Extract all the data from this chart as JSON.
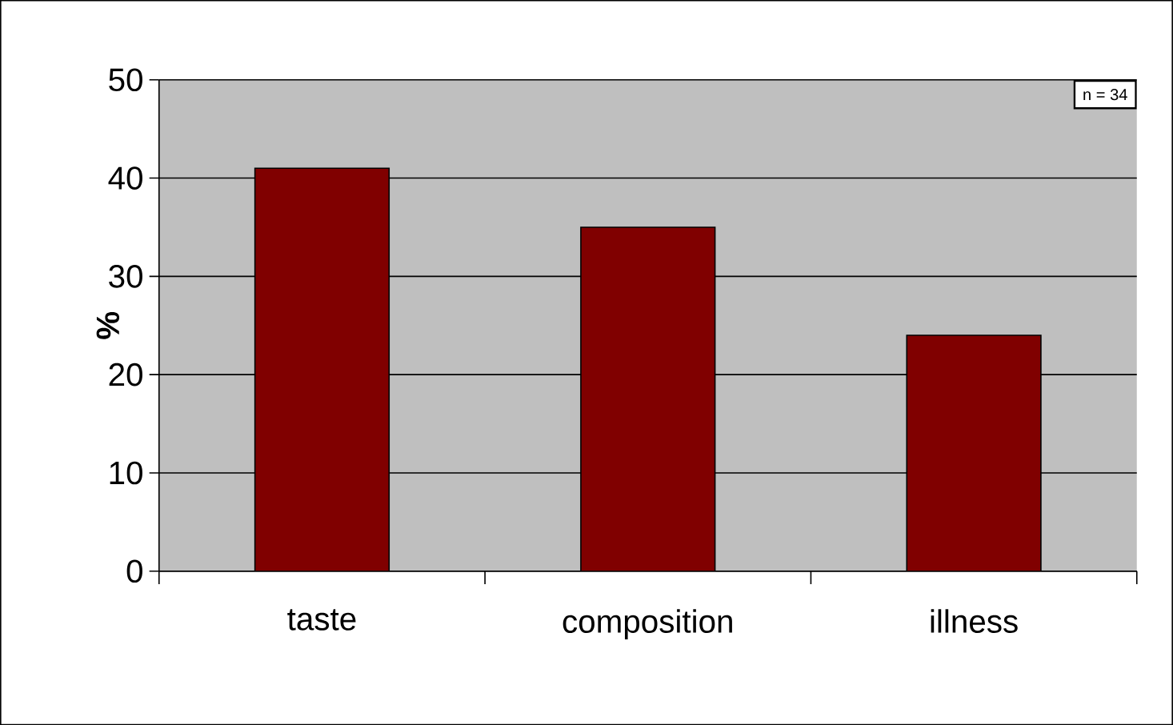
{
  "chart_data": {
    "type": "bar",
    "ylabel": "%",
    "categories": [
      "taste",
      "composition",
      "illness"
    ],
    "values": [
      41,
      35,
      24
    ],
    "color": "#800000",
    "ylim": [
      0,
      50
    ],
    "yticks": [
      0,
      10,
      20,
      30,
      40,
      50
    ],
    "grid": "y",
    "annotations": [
      "n = 34"
    ]
  }
}
